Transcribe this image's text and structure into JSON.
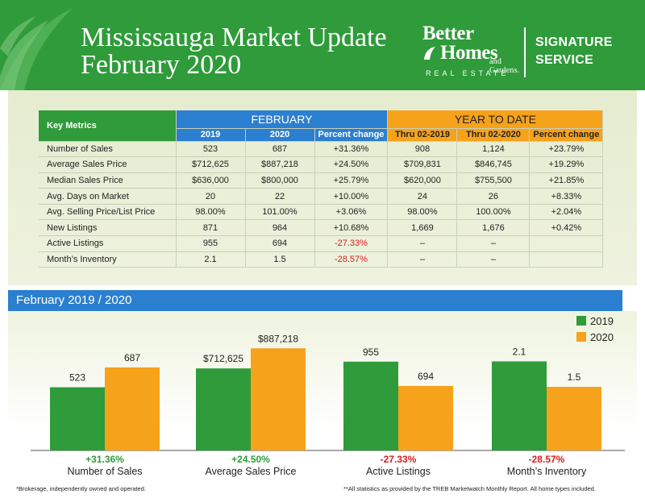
{
  "header": {
    "title_line1": "Mississauga Market Update",
    "title_line2": "February 2020",
    "brand_line1": "Better",
    "brand_line2": "Homes",
    "brand_line3": "and Gardens.",
    "brand_line4": "REAL ESTATE",
    "signature_line1": "SIGNATURE",
    "signature_line2": "SERVICE"
  },
  "table": {
    "key_label": "Key Metrics",
    "group_feb": "FEBRUARY",
    "group_ytd": "YEAR TO DATE",
    "sub_headers": [
      "2019",
      "2020",
      "Percent change",
      "Thru 02-2019",
      "Thru 02-2020",
      "Percent change"
    ],
    "rows": [
      {
        "label": "Number of Sales",
        "cells": [
          "523",
          "687",
          "+31.36%",
          "908",
          "1,124",
          "+23.79%"
        ]
      },
      {
        "label": "Average Sales Price",
        "cells": [
          "$712,625",
          "$887,218",
          "+24.50%",
          "$709,831",
          "$846,745",
          "+19.29%"
        ]
      },
      {
        "label": "Median Sales Price",
        "cells": [
          "$636,000",
          "$800,000",
          "+25.79%",
          "$620,000",
          "$755,500",
          "+21.85%"
        ]
      },
      {
        "label": "Avg. Days on Market",
        "cells": [
          "20",
          "22",
          "+10.00%",
          "24",
          "26",
          "+8.33%"
        ]
      },
      {
        "label": "Avg. Selling Price/List Price",
        "cells": [
          "98.00%",
          "101.00%",
          "+3.06%",
          "98.00%",
          "100.00%",
          "+2.04%"
        ]
      },
      {
        "label": "New Listings",
        "cells": [
          "871",
          "964",
          "+10.68%",
          "1,669",
          "1,676",
          "+0.42%"
        ]
      },
      {
        "label": "Active Listings",
        "cells": [
          "955",
          "694",
          "-27.33%",
          "–",
          "–",
          ""
        ]
      },
      {
        "label": "Month’s Inventory",
        "cells": [
          "2.1",
          "1.5",
          "-28.57%",
          "–",
          "–",
          ""
        ]
      }
    ]
  },
  "banner": {
    "title": "February 2019 / 2020"
  },
  "chart_data": {
    "type": "bar",
    "title": "February 2019 / 2020",
    "series_names": [
      "2019",
      "2020"
    ],
    "colors": {
      "2019": "#2f9b3a",
      "2020": "#f7a21b",
      "positive": "#2f9b3a",
      "negative": "#d62020"
    },
    "groups": [
      {
        "category": "Number of Sales",
        "values": [
          523,
          687
        ],
        "labels": [
          "523",
          "687"
        ],
        "change": "+31.36%",
        "max": 1000
      },
      {
        "category": "Average Sales Price",
        "values": [
          712625,
          887218
        ],
        "labels": [
          "$712,625",
          "$887,218"
        ],
        "change": "+24.50%",
        "max": 1050000
      },
      {
        "category": "Active Listings",
        "values": [
          955,
          694
        ],
        "labels": [
          "955",
          "694"
        ],
        "change": "-27.33%",
        "max": 1300
      },
      {
        "category": "Month’s Inventory",
        "values": [
          2.1,
          1.5
        ],
        "labels": [
          "2.1",
          "1.5"
        ],
        "change": "-28.57%",
        "max": 2.85
      }
    ],
    "legend": [
      "2019",
      "2020"
    ],
    "legend_position": "top-right"
  },
  "footer": {
    "left": "*Brokerage, independently owned and operated.",
    "right": "**All statistics as provided by the TREB Marketwatch Monthly Report. All home types included."
  }
}
